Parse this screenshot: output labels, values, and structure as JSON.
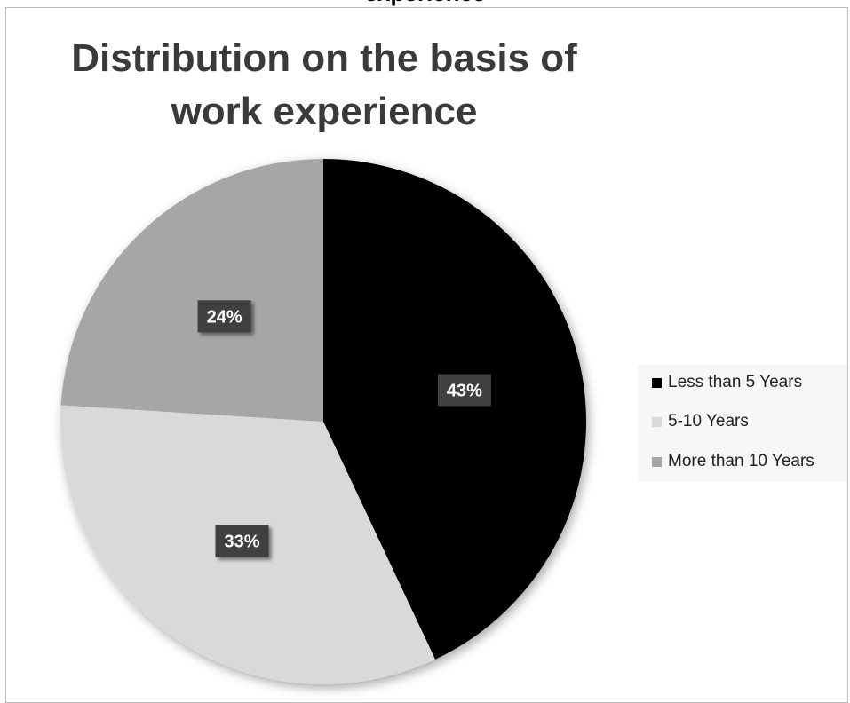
{
  "chart_data": {
    "type": "pie",
    "title": "Distribution on the basis of work experience",
    "clipped_title": "experience",
    "categories": [
      "Less than 5 Years",
      "5-10 Years",
      "More than 10 Years"
    ],
    "values": [
      43,
      33,
      24
    ],
    "data_labels": [
      "43%",
      "33%",
      "24%"
    ],
    "colors": [
      "#000000",
      "#d9d9d9",
      "#a6a6a6"
    ],
    "label_box_color": "#404040",
    "legend_position": "right"
  }
}
